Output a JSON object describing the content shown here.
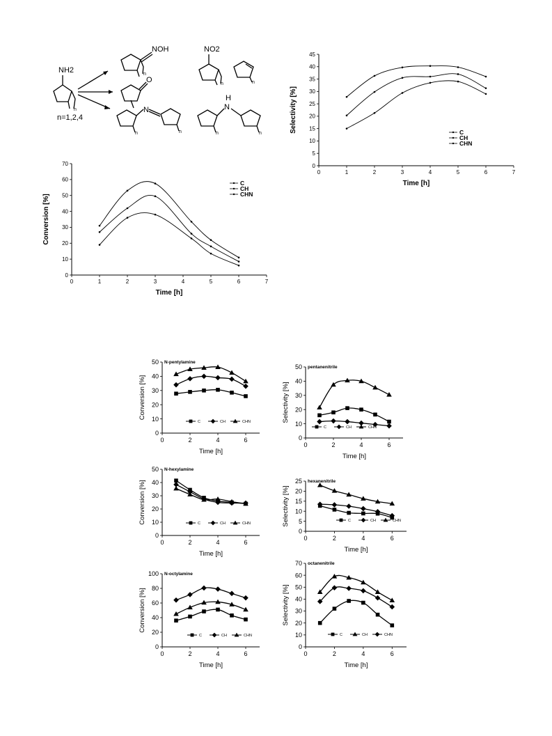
{
  "scheme": {
    "reactant_label": "NH2",
    "n_label": "n=1,2,4",
    "oxime_label": "NOH",
    "ketone_label": "O",
    "imine_label": "N",
    "nitro_label": "NO2",
    "amine_label": "N",
    "amine_h_label": "H",
    "sub_n": "n"
  },
  "chart_data": [
    {
      "id": "top-selectivity",
      "type": "line",
      "x": [
        1,
        2,
        3,
        4,
        5,
        6
      ],
      "series": [
        {
          "name": "C",
          "values": [
            27.8,
            36.3,
            39.7,
            40.3,
            39.8,
            36.0
          ]
        },
        {
          "name": "CH",
          "values": [
            20.3,
            29.8,
            35.5,
            36.0,
            37.0,
            31.3
          ]
        },
        {
          "name": "CHN",
          "values": [
            15.0,
            21.3,
            29.4,
            33.5,
            34.0,
            29.0
          ]
        }
      ],
      "xlabel": "Time [h]",
      "ylabel": "Selectivity [%]",
      "xlim": [
        0,
        7
      ],
      "ylim": [
        0,
        45
      ],
      "xticks": [
        0,
        1,
        2,
        3,
        4,
        5,
        6,
        7
      ],
      "yticks": [
        0,
        5,
        10,
        15,
        20,
        25,
        30,
        35,
        40,
        45
      ],
      "legend": "lower-right",
      "grid": false
    },
    {
      "id": "top-conversion",
      "type": "line",
      "x": [
        1,
        2,
        3,
        4.3,
        5,
        6
      ],
      "series": [
        {
          "name": "C",
          "values": [
            31.0,
            53.0,
            57.5,
            33.5,
            22.0,
            11.0
          ]
        },
        {
          "name": "CH",
          "values": [
            27.0,
            42.0,
            49.5,
            26.0,
            18.0,
            8.5
          ]
        },
        {
          "name": "CHN",
          "values": [
            19.0,
            36.0,
            38.0,
            23.0,
            13.5,
            6.0
          ]
        }
      ],
      "xlabel": "Time [h]",
      "ylabel": "Conversion [%]",
      "xlim": [
        0,
        7
      ],
      "ylim": [
        0,
        70
      ],
      "xticks": [
        0,
        1,
        2,
        3,
        4,
        5,
        6,
        7
      ],
      "yticks": [
        0,
        10,
        20,
        30,
        40,
        50,
        60,
        70
      ],
      "legend": "top-right",
      "grid": false
    },
    {
      "id": "pentylamine-conversion",
      "type": "line",
      "title": "N-pentylamine",
      "x": [
        1,
        2,
        3,
        4,
        5,
        6
      ],
      "series": [
        {
          "name": "C",
          "marker": "square",
          "values": [
            27.8,
            29.0,
            30.0,
            30.5,
            28.5,
            26.0
          ]
        },
        {
          "name": "CH",
          "marker": "diamond",
          "values": [
            34.0,
            38.3,
            40.0,
            39.0,
            38.0,
            33.0
          ]
        },
        {
          "name": "CHN",
          "marker": "triangle",
          "values": [
            41.5,
            45.0,
            46.0,
            46.5,
            42.5,
            36.5
          ]
        }
      ],
      "xlabel": "Time [h]",
      "ylabel": "Conversion [%]",
      "xlim": [
        0,
        7
      ],
      "ylim": [
        0,
        50
      ],
      "xticks": [
        0,
        2,
        4,
        6
      ],
      "yticks": [
        0,
        10,
        20,
        30,
        40,
        50
      ],
      "legend": "bottom",
      "grid": false
    },
    {
      "id": "pentanenitrile-selectivity",
      "type": "line",
      "title": "pentanenitrile",
      "x": [
        1,
        2,
        3,
        4,
        5,
        6
      ],
      "series": [
        {
          "name": "C",
          "marker": "square",
          "values": [
            16.0,
            18.0,
            21.0,
            20.0,
            16.5,
            11.5
          ]
        },
        {
          "name": "CH",
          "marker": "diamond",
          "values": [
            11.5,
            12.0,
            11.5,
            10.5,
            9.5,
            8.5
          ]
        },
        {
          "name": "CHN",
          "marker": "triangle",
          "values": [
            21.5,
            37.5,
            40.5,
            40.0,
            35.5,
            30.5
          ]
        }
      ],
      "xlabel": "Time [h]",
      "ylabel": "Selectivity [%]",
      "xlim": [
        0,
        7
      ],
      "ylim": [
        0,
        50
      ],
      "xticks": [
        0,
        2,
        4,
        6
      ],
      "yticks": [
        0,
        10,
        20,
        30,
        40,
        50
      ],
      "legend": "bottom",
      "grid": false
    },
    {
      "id": "hexylamine-conversion",
      "type": "line",
      "title": "N-hexylamine",
      "x": [
        1,
        2,
        3,
        4,
        5,
        6
      ],
      "series": [
        {
          "name": "C",
          "marker": "square",
          "values": [
            41.5,
            34.5,
            28.5,
            26.0,
            25.0,
            24.0
          ]
        },
        {
          "name": "CH",
          "marker": "diamond",
          "values": [
            38.5,
            33.0,
            27.5,
            25.0,
            24.5,
            24.5
          ]
        },
        {
          "name": "CHN",
          "marker": "triangle",
          "values": [
            35.5,
            31.0,
            27.0,
            27.5,
            25.5,
            24.0
          ]
        }
      ],
      "xlabel": "Time [h]",
      "ylabel": "Conversion [%]",
      "xlim": [
        0,
        7
      ],
      "ylim": [
        0,
        50
      ],
      "xticks": [
        0,
        2,
        4,
        6
      ],
      "yticks": [
        0,
        10,
        20,
        30,
        40,
        50
      ],
      "legend": "bottom",
      "grid": false
    },
    {
      "id": "hexanenitrile-selectivity",
      "type": "line",
      "title": "hexanenitrile",
      "x": [
        1,
        2,
        3,
        4,
        5,
        6
      ],
      "series": [
        {
          "name": "C",
          "marker": "square",
          "values": [
            12.7,
            10.8,
            9.2,
            8.9,
            8.8,
            6.8
          ]
        },
        {
          "name": "CH",
          "marker": "diamond",
          "values": [
            13.5,
            13.2,
            12.5,
            11.3,
            9.8,
            7.8
          ]
        },
        {
          "name": "CHN",
          "marker": "triangle",
          "values": [
            23.0,
            20.2,
            18.3,
            16.3,
            14.8,
            13.8
          ]
        }
      ],
      "xlabel": "Time [h]",
      "ylabel": "Selectivity [%]",
      "xlim": [
        0,
        7
      ],
      "ylim": [
        0,
        25
      ],
      "xticks": [
        0,
        2,
        4,
        6
      ],
      "yticks": [
        0,
        5,
        10,
        15,
        20,
        25
      ],
      "legend": "bottom",
      "grid": false
    },
    {
      "id": "octylamine-conversion",
      "type": "line",
      "title": "N-octylamine",
      "x": [
        1,
        2,
        3,
        4,
        5,
        6
      ],
      "series": [
        {
          "name": "C",
          "marker": "square",
          "values": [
            36.0,
            41.5,
            48.5,
            51.0,
            43.0,
            37.5
          ]
        },
        {
          "name": "CH",
          "marker": "diamond",
          "values": [
            64.0,
            71.5,
            80.5,
            79.0,
            73.0,
            67.0
          ]
        },
        {
          "name": "CHN",
          "marker": "triangle",
          "values": [
            45.0,
            54.0,
            60.5,
            61.5,
            58.0,
            51.0
          ]
        }
      ],
      "xlabel": "Time [h]",
      "ylabel": "Conversion [%]",
      "xlim": [
        0,
        7
      ],
      "ylim": [
        0,
        100
      ],
      "xticks": [
        0,
        2,
        4,
        6
      ],
      "yticks": [
        0,
        20,
        40,
        60,
        80,
        100
      ],
      "legend": "bottom",
      "grid": false
    },
    {
      "id": "octanenitrile-selectivity",
      "type": "line",
      "title": "octanenitrile",
      "x": [
        1,
        2,
        3,
        4,
        5,
        6
      ],
      "series": [
        {
          "name": "C",
          "marker": "square",
          "values": [
            20.0,
            32.0,
            38.5,
            37.0,
            27.0,
            18.0
          ]
        },
        {
          "name": "CH",
          "marker": "triangle",
          "values": [
            46.0,
            59.0,
            58.0,
            54.0,
            46.0,
            39.0
          ]
        },
        {
          "name": "CHN",
          "marker": "diamond",
          "values": [
            38.0,
            49.5,
            49.0,
            47.0,
            41.0,
            33.5
          ]
        }
      ],
      "xlabel": "Time [h]",
      "ylabel": "Selectivity [%]",
      "xlim": [
        0,
        7
      ],
      "ylim": [
        0,
        70
      ],
      "xticks": [
        0,
        2,
        4,
        6
      ],
      "yticks": [
        0,
        10,
        20,
        30,
        40,
        50,
        60,
        70
      ],
      "legend": "bottom",
      "grid": false
    }
  ]
}
